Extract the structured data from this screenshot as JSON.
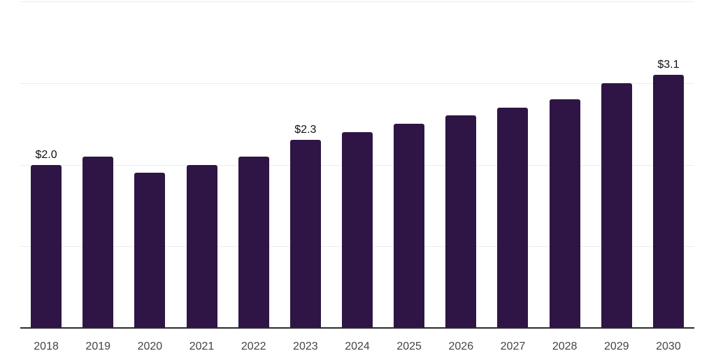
{
  "chart_data": {
    "type": "bar",
    "title": "",
    "xlabel": "",
    "ylabel": "",
    "categories": [
      "2018",
      "2019",
      "2020",
      "2021",
      "2022",
      "2023",
      "2024",
      "2025",
      "2026",
      "2027",
      "2028",
      "2029",
      "2030"
    ],
    "values": [
      2.0,
      2.1,
      1.9,
      2.0,
      2.1,
      2.3,
      2.4,
      2.5,
      2.6,
      2.7,
      2.8,
      3.0,
      3.1
    ],
    "data_labels": [
      {
        "index": 0,
        "text": "$2.0"
      },
      {
        "index": 5,
        "text": "$2.3"
      },
      {
        "index": 12,
        "text": "$3.1"
      }
    ],
    "ylim": [
      0,
      4
    ],
    "gridline_values": [
      1,
      2,
      3,
      4
    ],
    "grid": "horizontal",
    "y_axis_ticks": "hidden",
    "legend_position": "none",
    "colors": {
      "bar": "#2f1545",
      "gridline": "#ececec",
      "axis_line": "#2b2b2b",
      "tick_label": "#444444",
      "data_label": "#111111",
      "background": "#ffffff"
    }
  }
}
